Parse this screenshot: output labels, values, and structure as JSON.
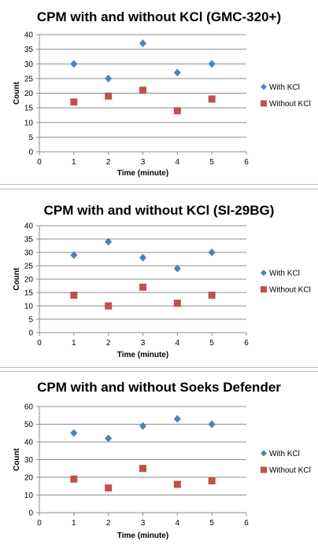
{
  "chart_data": [
    {
      "type": "scatter",
      "title": "CPM with and without KCl (GMC-320+)",
      "xlabel": "Time (minute)",
      "ylabel": "Count",
      "xlim": [
        0,
        6
      ],
      "ylim": [
        0,
        40
      ],
      "xticks": [
        "0",
        "1",
        "2",
        "3",
        "4",
        "5",
        "6"
      ],
      "yticks": [
        "0",
        "5",
        "10",
        "15",
        "20",
        "25",
        "30",
        "35",
        "40"
      ],
      "grid": true,
      "legend_position": "right",
      "series": [
        {
          "name": "With KCl",
          "color": "#4F81BD",
          "marker": "diamond",
          "x": [
            1,
            2,
            3,
            4,
            5
          ],
          "y": [
            30,
            25,
            37,
            27,
            30
          ]
        },
        {
          "name": "Without KCl",
          "color": "#C0504D",
          "marker": "square",
          "x": [
            1,
            2,
            3,
            4,
            5
          ],
          "y": [
            17,
            19,
            21,
            14,
            18
          ]
        }
      ]
    },
    {
      "type": "scatter",
      "title": "CPM with and without KCl (SI-29BG)",
      "xlabel": "Time (minute)",
      "ylabel": "Count",
      "xlim": [
        0,
        6
      ],
      "ylim": [
        0,
        40
      ],
      "xticks": [
        "0",
        "1",
        "2",
        "3",
        "4",
        "5",
        "6"
      ],
      "yticks": [
        "0",
        "5",
        "10",
        "15",
        "20",
        "25",
        "30",
        "35",
        "40"
      ],
      "grid": true,
      "legend_position": "right",
      "series": [
        {
          "name": "With KCl",
          "color": "#4F81BD",
          "marker": "diamond",
          "x": [
            1,
            2,
            3,
            4,
            5
          ],
          "y": [
            29,
            34,
            28,
            24,
            30
          ]
        },
        {
          "name": "Without KCl",
          "color": "#C0504D",
          "marker": "square",
          "x": [
            1,
            2,
            3,
            4,
            5
          ],
          "y": [
            14,
            10,
            17,
            11,
            14
          ]
        }
      ]
    },
    {
      "type": "scatter",
      "title": "CPM with and without Soeks Defender",
      "xlabel": "Time (minute)",
      "ylabel": "Count",
      "xlim": [
        0,
        6
      ],
      "ylim": [
        0,
        60
      ],
      "xticks": [
        "0",
        "1",
        "2",
        "3",
        "4",
        "5",
        "6"
      ],
      "yticks": [
        "0",
        "10",
        "20",
        "30",
        "40",
        "50",
        "60"
      ],
      "grid": true,
      "legend_position": "right",
      "series": [
        {
          "name": "With KCl",
          "color": "#4F81BD",
          "marker": "diamond",
          "x": [
            1,
            2,
            3,
            4,
            5
          ],
          "y": [
            45,
            42,
            49,
            53,
            50
          ]
        },
        {
          "name": "Without KCl",
          "color": "#C0504D",
          "marker": "square",
          "x": [
            1,
            2,
            3,
            4,
            5
          ],
          "y": [
            19,
            14,
            25,
            16,
            18
          ]
        }
      ]
    }
  ]
}
